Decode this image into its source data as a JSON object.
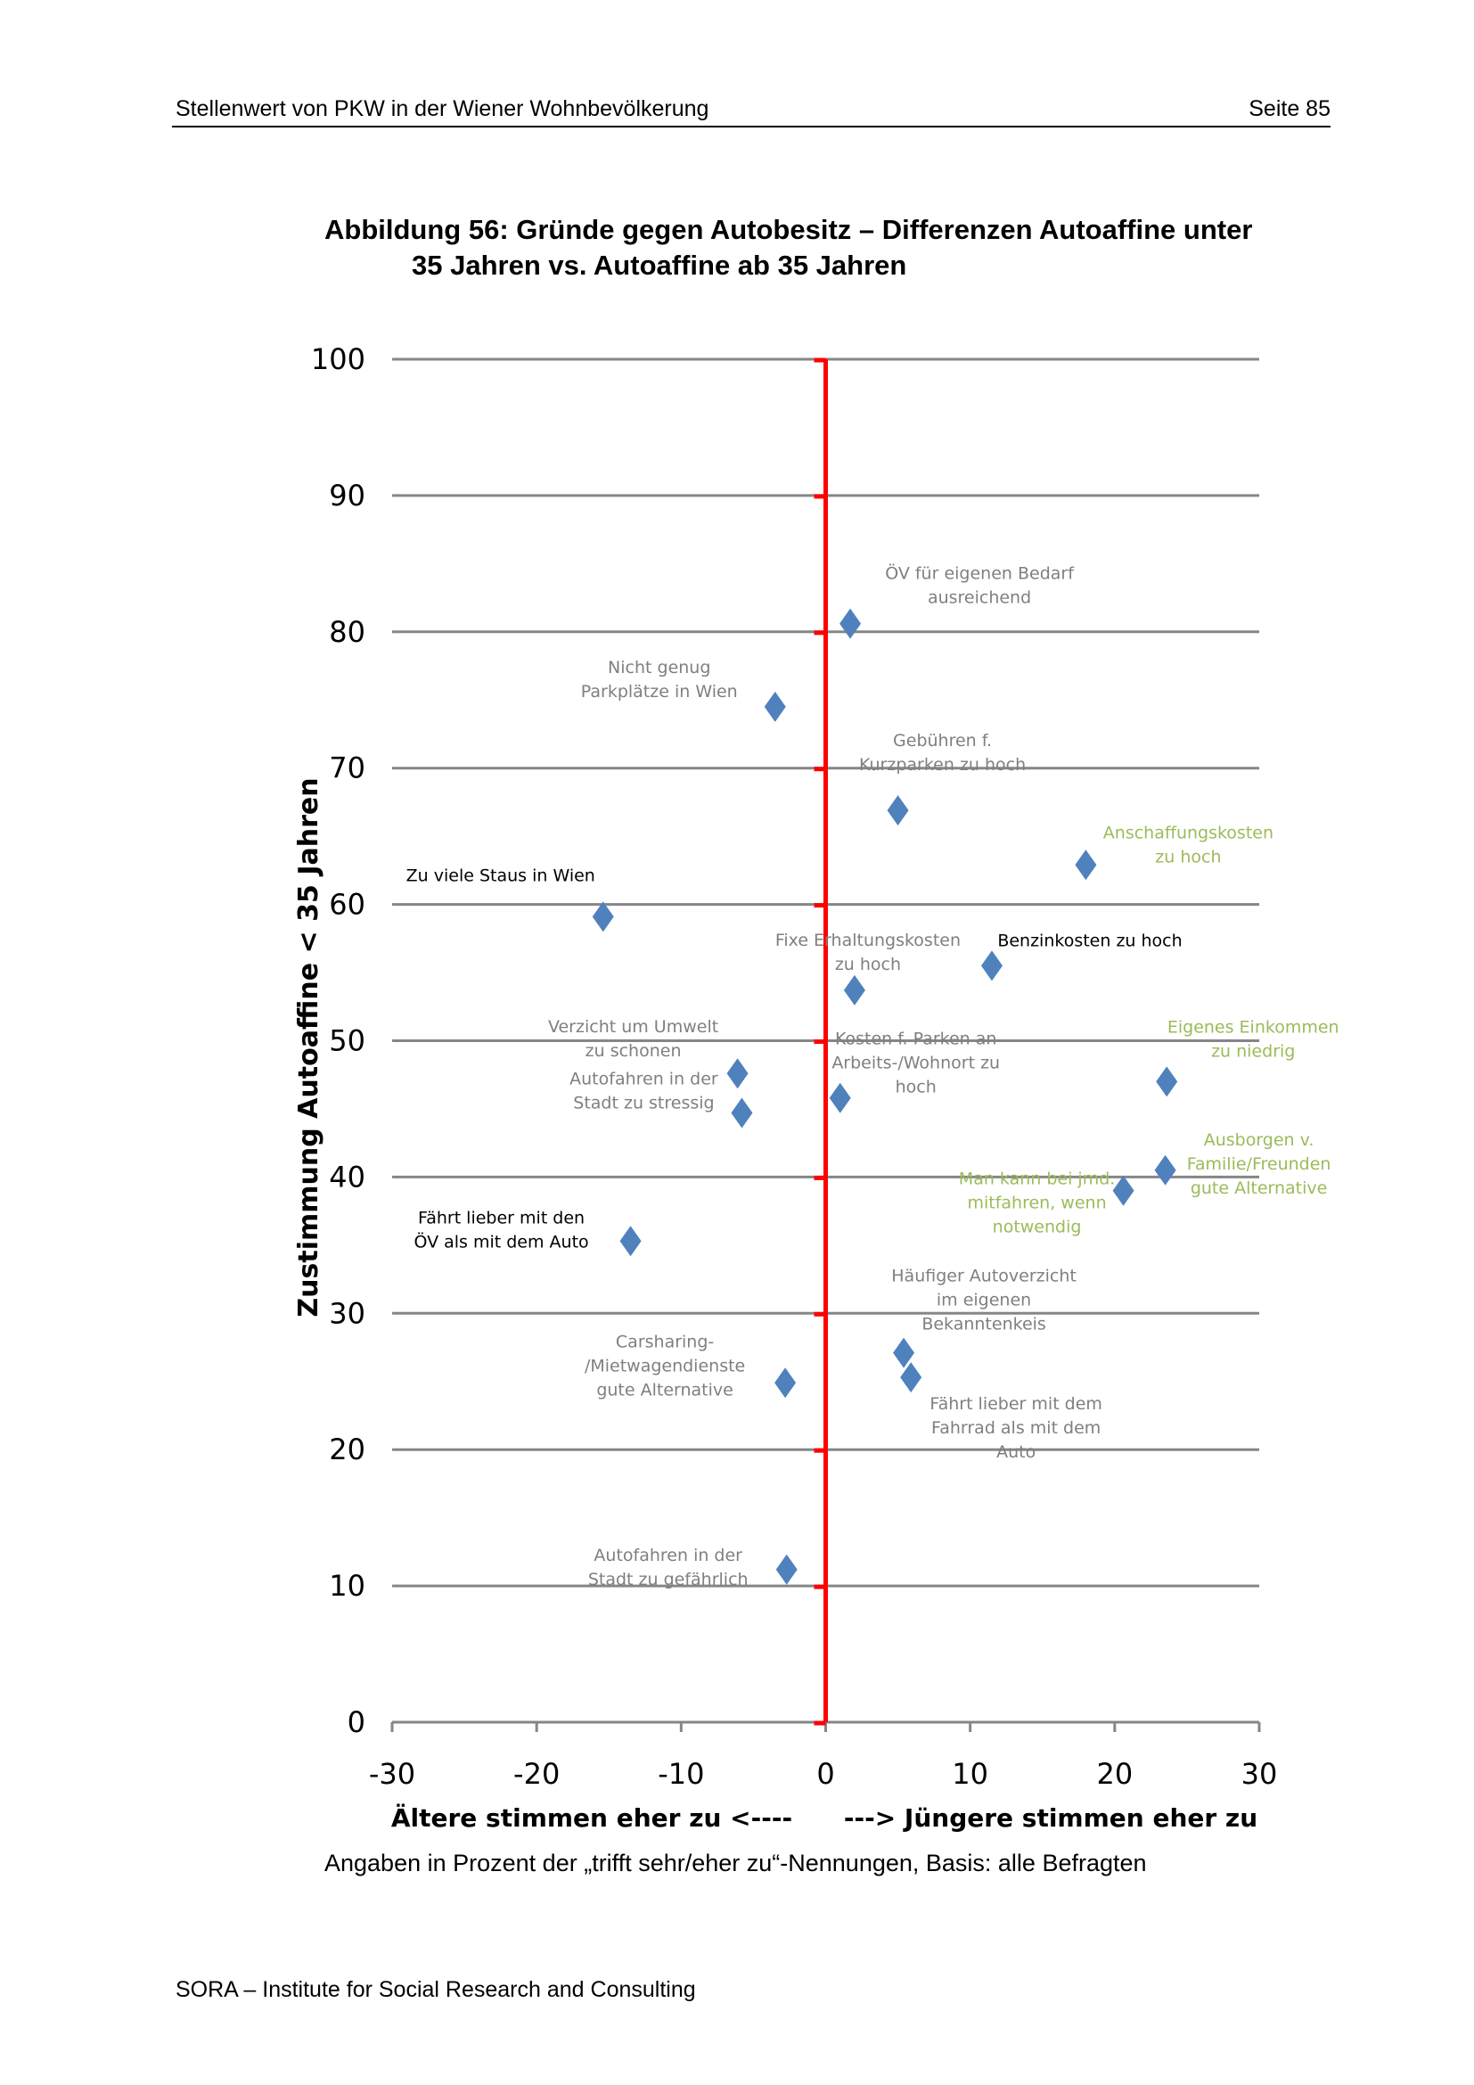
{
  "header": {
    "left": "Stellenwert von PKW in der Wiener Wohnbevölkerung",
    "right": "Seite 85"
  },
  "figure": {
    "title_line1": "Abbildung 56: Gründe gegen Autobesitz – Differenzen Autoaffine unter",
    "title_line2": "35 Jahren vs. Autoaffine ab 35 Jahren",
    "caption": "Angaben in Prozent der „trifft sehr/eher zu“-Nennungen, Basis: alle Befragten"
  },
  "footer": {
    "text": "SORA – Institute for Social Research and Consulting"
  },
  "colors": {
    "marker": "#4F81BD",
    "zero_line": "#FF0000",
    "gridline": "#868686",
    "label_gray": "#7F7F7F",
    "label_black": "#000000",
    "label_green": "#9BBB59"
  },
  "chart_data": {
    "type": "scatter",
    "title": "Abbildung 56: Gründe gegen Autobesitz – Differenzen Autoaffine unter 35 Jahren vs. Autoaffine ab 35 Jahren",
    "xlabel_left": "Ältere stimmen eher zu <----",
    "xlabel_right": "---> Jüngere stimmen eher zu",
    "ylabel": "Zustimmung Autoaffine < 35 Jahren",
    "xlim": [
      -30,
      30
    ],
    "ylim": [
      0,
      100
    ],
    "xticks": [
      "-30",
      "-20",
      "-10",
      "0",
      "10",
      "20",
      "30"
    ],
    "yticks": [
      "0",
      "10",
      "20",
      "30",
      "40",
      "50",
      "60",
      "70",
      "80",
      "90",
      "100"
    ],
    "grid": "horizontal",
    "reference_line_x": 0,
    "marker": "diamond",
    "points": [
      {
        "label": [
          "ÖV für eigenen Bedarf",
          "ausreichend"
        ],
        "x": 1.7,
        "y": 80.6,
        "color_key": "label_gray"
      },
      {
        "label": [
          "Nicht genug",
          "Parkplätze in Wien"
        ],
        "x": -3.5,
        "y": 74.5,
        "color_key": "label_gray"
      },
      {
        "label": [
          "Gebühren f.",
          "Kurzparken zu hoch"
        ],
        "x": 5.0,
        "y": 66.9,
        "color_key": "label_gray"
      },
      {
        "label": [
          "Anschaffungskosten",
          "zu hoch"
        ],
        "x": 18.0,
        "y": 62.9,
        "color_key": "label_green"
      },
      {
        "label": [
          "Zu viele Staus in Wien"
        ],
        "x": -15.4,
        "y": 59.1,
        "color_key": "label_black"
      },
      {
        "label": [
          "Benzinkosten zu hoch"
        ],
        "x": 11.5,
        "y": 55.5,
        "color_key": "label_black"
      },
      {
        "label": [
          "Fixe Erhaltungskosten",
          "zu hoch"
        ],
        "x": 2.0,
        "y": 53.7,
        "color_key": "label_gray"
      },
      {
        "label": [
          "Verzicht um Umwelt",
          "zu schonen"
        ],
        "x": -6.1,
        "y": 47.6,
        "color_key": "label_gray"
      },
      {
        "label": [
          "Eigenes Einkommen",
          "zu niedrig"
        ],
        "x": 23.6,
        "y": 47.0,
        "color_key": "label_green"
      },
      {
        "label": [
          "Kosten f. Parken an",
          "Arbeits-/Wohnort zu",
          "hoch"
        ],
        "x": 1.0,
        "y": 45.8,
        "color_key": "label_gray"
      },
      {
        "label": [
          "Autofahren in der",
          "Stadt zu stressig"
        ],
        "x": -5.8,
        "y": 44.7,
        "color_key": "label_gray"
      },
      {
        "label": [
          "Ausborgen v.",
          "Familie/Freunden",
          "gute Alternative"
        ],
        "x": 23.5,
        "y": 40.5,
        "color_key": "label_green"
      },
      {
        "label": [
          "Man kann bei jmd.",
          "mitfahren, wenn",
          "notwendig"
        ],
        "x": 20.6,
        "y": 39.0,
        "color_key": "label_green"
      },
      {
        "label": [
          "Fährt lieber mit den",
          "ÖV als mit dem Auto"
        ],
        "x": -13.5,
        "y": 35.3,
        "color_key": "label_black"
      },
      {
        "label": [
          "Häufiger Autoverzicht",
          "im eigenen",
          "Bekanntenkeis"
        ],
        "x": 5.4,
        "y": 27.1,
        "color_key": "label_gray"
      },
      {
        "label": [
          "Fährt lieber mit dem",
          "Fahrrad als mit dem",
          "Auto"
        ],
        "x": 5.9,
        "y": 25.3,
        "color_key": "label_gray"
      },
      {
        "label": [
          "Carsharing-",
          "/Mietwagendienste",
          "gute Alternative"
        ],
        "x": -2.8,
        "y": 24.9,
        "color_key": "label_gray"
      },
      {
        "label": [
          "Autofahren in der",
          "Stadt zu gefährlich"
        ],
        "x": -2.7,
        "y": 11.2,
        "color_key": "label_gray"
      }
    ]
  }
}
